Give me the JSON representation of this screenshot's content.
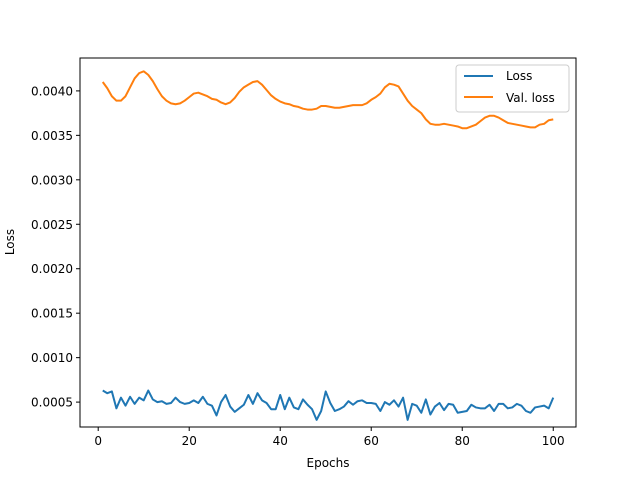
{
  "chart_data": {
    "type": "line",
    "title": "",
    "xlabel": "Epochs",
    "ylabel": "Loss",
    "xlim": [
      -4.0,
      105.0
    ],
    "ylim": [
      0.00022,
      0.00437
    ],
    "x_ticks": [
      0,
      20,
      40,
      60,
      80,
      100
    ],
    "x_tick_labels": [
      "0",
      "20",
      "40",
      "60",
      "80",
      "100"
    ],
    "y_ticks": [
      0.0005,
      0.001,
      0.0015,
      0.002,
      0.0025,
      0.003,
      0.0035,
      0.004
    ],
    "y_tick_labels": [
      "0.0005",
      "0.0010",
      "0.0015",
      "0.0020",
      "0.0025",
      "0.0030",
      "0.0035",
      "0.0040"
    ],
    "grid": false,
    "legend_position": "top-right",
    "x": [
      1,
      2,
      3,
      4,
      5,
      6,
      7,
      8,
      9,
      10,
      11,
      12,
      13,
      14,
      15,
      16,
      17,
      18,
      19,
      20,
      21,
      22,
      23,
      24,
      25,
      26,
      27,
      28,
      29,
      30,
      31,
      32,
      33,
      34,
      35,
      36,
      37,
      38,
      39,
      40,
      41,
      42,
      43,
      44,
      45,
      46,
      47,
      48,
      49,
      50,
      51,
      52,
      53,
      54,
      55,
      56,
      57,
      58,
      59,
      60,
      61,
      62,
      63,
      64,
      65,
      66,
      67,
      68,
      69,
      70,
      71,
      72,
      73,
      74,
      75,
      76,
      77,
      78,
      79,
      80,
      81,
      82,
      83,
      84,
      85,
      86,
      87,
      88,
      89,
      90,
      91,
      92,
      93,
      94,
      95,
      96,
      97,
      98,
      99,
      100
    ],
    "series": [
      {
        "name": "Loss",
        "color": "#1f77b4",
        "values": [
          0.00063,
          0.0006,
          0.00062,
          0.00043,
          0.00055,
          0.00046,
          0.00056,
          0.00048,
          0.00055,
          0.00052,
          0.00063,
          0.00053,
          0.0005,
          0.00051,
          0.00048,
          0.00049,
          0.00055,
          0.0005,
          0.00048,
          0.00049,
          0.00052,
          0.00049,
          0.00056,
          0.00048,
          0.00046,
          0.00035,
          0.0005,
          0.00058,
          0.00045,
          0.00039,
          0.00043,
          0.00047,
          0.00058,
          0.00048,
          0.0006,
          0.00052,
          0.00049,
          0.00042,
          0.00042,
          0.00058,
          0.00042,
          0.00055,
          0.00044,
          0.00042,
          0.00053,
          0.00047,
          0.00042,
          0.0003,
          0.0004,
          0.00062,
          0.00049,
          0.0004,
          0.00042,
          0.00045,
          0.00051,
          0.00047,
          0.00051,
          0.00052,
          0.00049,
          0.00049,
          0.00048,
          0.0004,
          0.0005,
          0.00047,
          0.00052,
          0.00045,
          0.00055,
          0.0003,
          0.00048,
          0.00046,
          0.00038,
          0.00053,
          0.00036,
          0.00045,
          0.00049,
          0.00041,
          0.00048,
          0.00047,
          0.00038,
          0.00039,
          0.0004,
          0.00047,
          0.00044,
          0.00043,
          0.00043,
          0.00047,
          0.0004,
          0.00048,
          0.00048,
          0.00043,
          0.00044,
          0.00048,
          0.00046,
          0.0004,
          0.00038,
          0.00044,
          0.00045,
          0.00046,
          0.00043,
          0.00055
        ]
      },
      {
        "name": "Val. loss",
        "color": "#ff7f0e",
        "values": [
          0.0041,
          0.00403,
          0.00394,
          0.00389,
          0.00389,
          0.00394,
          0.00404,
          0.00414,
          0.0042,
          0.00422,
          0.00418,
          0.00411,
          0.00402,
          0.00394,
          0.00389,
          0.00386,
          0.00385,
          0.00386,
          0.00389,
          0.00393,
          0.00397,
          0.00398,
          0.00396,
          0.00394,
          0.00391,
          0.0039,
          0.00387,
          0.00385,
          0.00387,
          0.00392,
          0.00399,
          0.00404,
          0.00407,
          0.0041,
          0.00411,
          0.00407,
          0.00401,
          0.00395,
          0.00391,
          0.00388,
          0.00386,
          0.00385,
          0.00383,
          0.00382,
          0.0038,
          0.00379,
          0.00379,
          0.0038,
          0.00383,
          0.00383,
          0.00382,
          0.00381,
          0.00381,
          0.00382,
          0.00383,
          0.00384,
          0.00384,
          0.00384,
          0.00386,
          0.0039,
          0.00393,
          0.00397,
          0.00404,
          0.00408,
          0.00407,
          0.00405,
          0.00397,
          0.00389,
          0.00383,
          0.00379,
          0.00375,
          0.00368,
          0.00363,
          0.00362,
          0.00362,
          0.00363,
          0.00362,
          0.00361,
          0.0036,
          0.00358,
          0.00358,
          0.0036,
          0.00362,
          0.00366,
          0.0037,
          0.00372,
          0.00372,
          0.0037,
          0.00367,
          0.00364,
          0.00363,
          0.00362,
          0.00361,
          0.0036,
          0.00359,
          0.00359,
          0.00362,
          0.00363,
          0.00367,
          0.00368
        ]
      }
    ]
  }
}
